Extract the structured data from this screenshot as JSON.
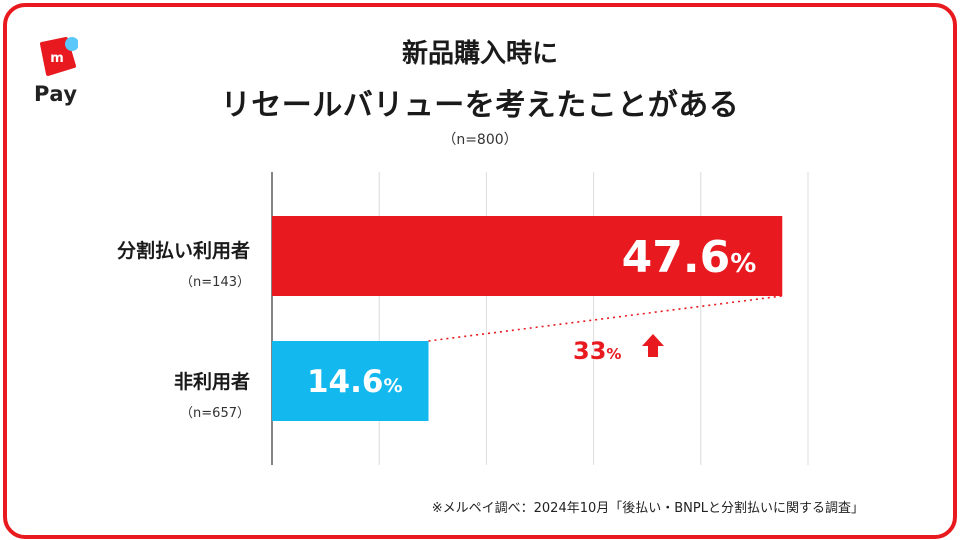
{
  "brand": {
    "name": "Pay",
    "icon": "merpay-logo-icon",
    "color": "#e8191f",
    "accent": "#5ac8fa"
  },
  "title": {
    "line1": "新品購入時に",
    "line2": "リセールバリューを考えたことがある"
  },
  "subtitle": "（n=800）",
  "chart_data": {
    "type": "bar",
    "orientation": "horizontal",
    "categories": [
      "分割払い利用者",
      "非利用者"
    ],
    "sample_sizes": [
      "（n=143）",
      "（n=657）"
    ],
    "values": [
      47.6,
      14.6
    ],
    "value_labels": [
      "47.6",
      "14.6"
    ],
    "unit": "%",
    "colors": [
      "#e8191f",
      "#13b8ef"
    ],
    "xlim": [
      0,
      50
    ],
    "grid": true,
    "annotation": {
      "text": "33",
      "unit": "%",
      "icon": "arrow-up-icon",
      "color": "#e8191f"
    }
  },
  "footnote": "※メルペイ調べ：2024年10月「後払い・BNPLと分割払いに関する調査」"
}
